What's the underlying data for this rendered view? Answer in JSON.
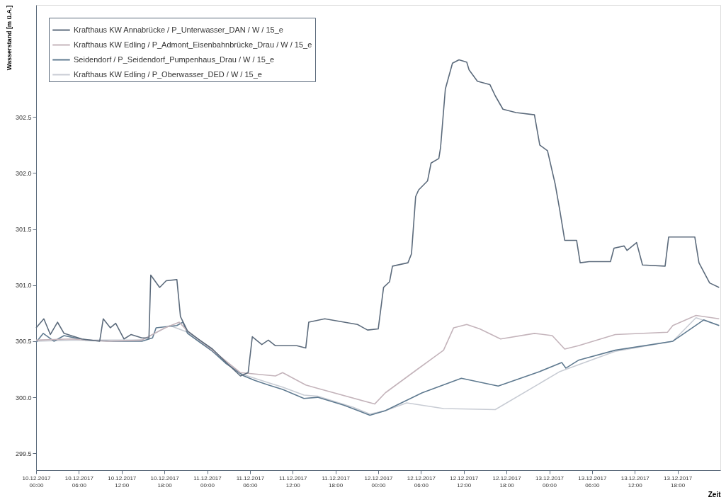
{
  "chart_data": {
    "type": "line",
    "ylabel": "Wasserstand [m ü.A.]",
    "xlabel": "Zeit",
    "xlim": [
      "2017-12-10T00:00",
      "2017-12-14T00:00"
    ],
    "ylim": [
      299.35,
      303.5
    ],
    "yticks": [
      299.5,
      {
        "value": 300,
        "label": "300.0"
      },
      300.5,
      {
        "value": 301,
        "label": "301.0"
      },
      301.5,
      {
        "value": 302,
        "label": "302.0"
      },
      302.5
    ],
    "xticks": [
      {
        "value": "2017-12-10T00:00",
        "label": "10.12.2017 00:00"
      },
      {
        "value": "2017-12-10T06:00",
        "label": "10.12.2017 06:00"
      },
      {
        "value": "2017-12-10T12:00",
        "label": "10.12.2017 12:00"
      },
      {
        "value": "2017-12-10T18:00",
        "label": "10.12.2017 18:00"
      },
      {
        "value": "2017-12-11T00:00",
        "label": "11.12.2017 00:00"
      },
      {
        "value": "2017-12-11T06:00",
        "label": "11.12.2017 06:00"
      },
      {
        "value": "2017-12-11T12:00",
        "label": "11.12.2017 12:00"
      },
      {
        "value": "2017-12-11T18:00",
        "label": "11.12.2017 18:00"
      },
      {
        "value": "2017-12-12T00:00",
        "label": "12.12.2017 00:00"
      },
      {
        "value": "2017-12-12T06:00",
        "label": "12.12.2017 06:00"
      },
      {
        "value": "2017-12-12T12:00",
        "label": "12.12.2017 12:00"
      },
      {
        "value": "2017-12-12T18:00",
        "label": "12.12.2017 18:00"
      },
      {
        "value": "2017-12-13T00:00",
        "label": "13.12.2017 00:00"
      },
      {
        "value": "2017-12-13T06:00",
        "label": "13.12.2017 06:00"
      },
      {
        "value": "2017-12-13T12:00",
        "label": "13.12.2017 12:00"
      },
      {
        "value": "2017-12-13T18:00",
        "label": "13.12.2017 18:00"
      }
    ],
    "grid": false,
    "legend": "top left",
    "series": [
      {
        "name": "Krafthaus KW Annabrücke / P_Unterwasser_DAN / W / 15_e",
        "color": "#5c6b7c",
        "x": [
          "2017-12-10T00:00",
          "2017-12-10T01:05",
          "2017-12-10T02:00",
          "2017-12-10T03:00",
          "2017-12-10T03:55",
          "2017-12-10T04:55",
          "2017-12-10T06:25",
          "2017-12-10T08:55",
          "2017-12-10T09:25",
          "2017-12-10T10:25",
          "2017-12-10T11:10",
          "2017-12-10T12:20",
          "2017-12-10T13:20",
          "2017-12-10T14:50",
          "2017-12-10T15:50",
          "2017-12-10T16:05",
          "2017-12-10T17:20",
          "2017-12-10T18:15",
          "2017-12-10T19:45",
          "2017-12-10T20:15",
          "2017-12-10T21:15",
          "2017-12-10T22:45",
          "2017-12-11T00:45",
          "2017-12-11T02:40",
          "2017-12-11T04:40",
          "2017-12-11T05:45",
          "2017-12-11T06:20",
          "2017-12-11T07:40",
          "2017-12-11T08:35",
          "2017-12-11T09:35",
          "2017-12-11T12:35",
          "2017-12-11T13:50",
          "2017-12-11T14:15",
          "2017-12-11T16:30",
          "2017-12-11T21:05",
          "2017-12-11T22:30",
          "2017-12-12T00:00",
          "2017-12-12T00:45",
          "2017-12-12T01:35",
          "2017-12-12T02:00",
          "2017-12-12T04:10",
          "2017-12-12T04:40",
          "2017-12-12T05:15",
          "2017-12-12T05:40",
          "2017-12-12T06:55",
          "2017-12-12T07:25",
          "2017-12-12T08:30",
          "2017-12-12T08:45",
          "2017-12-12T09:25",
          "2017-12-12T10:25",
          "2017-12-12T11:20",
          "2017-12-12T12:25",
          "2017-12-12T12:45",
          "2017-12-12T13:55",
          "2017-12-12T15:40",
          "2017-12-12T16:25",
          "2017-12-12T17:30",
          "2017-12-12T19:20",
          "2017-12-12T21:55",
          "2017-12-12T22:40",
          "2017-12-12T23:45",
          "2017-12-13T00:50",
          "2017-12-13T01:30",
          "2017-12-13T02:10",
          "2017-12-13T03:50",
          "2017-12-13T04:20",
          "2017-12-13T05:35",
          "2017-12-13T08:35",
          "2017-12-13T09:05",
          "2017-12-13T10:30",
          "2017-12-13T10:55",
          "2017-12-13T12:15",
          "2017-12-13T13:05",
          "2017-12-13T16:15",
          "2017-12-13T16:45",
          "2017-12-13T20:25",
          "2017-12-13T21:00",
          "2017-12-13T22:30",
          "2017-12-13T23:50"
        ],
        "values": [
          300.62,
          300.7,
          300.56,
          300.67,
          300.57,
          300.55,
          300.52,
          300.5,
          300.7,
          300.62,
          300.66,
          300.52,
          300.56,
          300.53,
          300.53,
          301.09,
          300.98,
          301.04,
          301.05,
          300.72,
          300.59,
          300.52,
          300.43,
          300.31,
          300.19,
          300.22,
          300.54,
          300.47,
          300.51,
          300.46,
          300.46,
          300.44,
          300.67,
          300.7,
          300.65,
          300.6,
          300.61,
          300.98,
          301.03,
          301.17,
          301.2,
          301.28,
          301.79,
          301.85,
          301.93,
          302.09,
          302.13,
          302.23,
          302.75,
          302.98,
          303.01,
          302.99,
          302.92,
          302.82,
          302.79,
          302.69,
          302.57,
          302.54,
          302.52,
          302.25,
          302.2,
          301.9,
          301.66,
          301.4,
          301.4,
          301.2,
          301.21,
          301.21,
          301.33,
          301.35,
          301.31,
          301.38,
          301.18,
          301.17,
          301.43,
          301.43,
          301.2,
          301.02,
          300.98
        ]
      },
      {
        "name": "Krafthaus KW Edling / P_Admont_Eisenbahnbrücke_Drau / W / 15_e",
        "color": "#c4b4bb",
        "x": [
          "2017-12-10T00:00",
          "2017-12-10T04:55",
          "2017-12-10T09:55",
          "2017-12-10T14:50",
          "2017-12-10T18:05",
          "2017-12-10T20:05",
          "2017-12-10T21:15",
          "2017-12-11T00:45",
          "2017-12-11T04:40",
          "2017-12-11T09:35",
          "2017-12-11T10:35",
          "2017-12-11T13:50",
          "2017-12-11T15:30",
          "2017-12-11T23:30",
          "2017-12-12T01:00",
          "2017-12-12T05:30",
          "2017-12-12T07:40",
          "2017-12-12T09:10",
          "2017-12-12T10:35",
          "2017-12-12T12:25",
          "2017-12-12T14:15",
          "2017-12-12T17:10",
          "2017-12-12T21:55",
          "2017-12-13T00:25",
          "2017-12-13T02:10",
          "2017-12-13T04:05",
          "2017-12-13T09:15",
          "2017-12-13T16:35",
          "2017-12-13T17:20",
          "2017-12-13T20:35",
          "2017-12-13T23:50"
        ],
        "values": [
          300.51,
          300.52,
          300.5,
          300.51,
          300.62,
          300.67,
          300.59,
          300.42,
          300.22,
          300.19,
          300.22,
          300.11,
          300.08,
          299.94,
          300.04,
          300.25,
          300.35,
          300.42,
          300.62,
          300.65,
          300.61,
          300.52,
          300.57,
          300.55,
          300.43,
          300.46,
          300.56,
          300.58,
          300.64,
          300.73,
          300.7
        ]
      },
      {
        "name": "Seidendorf / P_Seidendorf_Pumpenhaus_Drau / W / 15_e",
        "color": "#5f7a90",
        "x": [
          "2017-12-10T00:00",
          "2017-12-10T01:00",
          "2017-12-10T02:30",
          "2017-12-10T03:55",
          "2017-12-10T06:55",
          "2017-12-10T10:50",
          "2017-12-10T14:50",
          "2017-12-10T16:20",
          "2017-12-10T16:50",
          "2017-12-10T19:45",
          "2017-12-10T20:35",
          "2017-12-10T21:15",
          "2017-12-10T22:45",
          "2017-12-11T00:45",
          "2017-12-11T02:40",
          "2017-12-11T05:10",
          "2017-12-11T06:40",
          "2017-12-11T08:35",
          "2017-12-11T10:35",
          "2017-12-11T13:35",
          "2017-12-11T15:30",
          "2017-12-11T19:10",
          "2017-12-11T22:50",
          "2017-12-12T01:00",
          "2017-12-12T06:10",
          "2017-12-12T11:40",
          "2017-12-12T16:50",
          "2017-12-12T22:40",
          "2017-12-13T01:45",
          "2017-12-13T02:20",
          "2017-12-13T04:05",
          "2017-12-13T09:15",
          "2017-12-13T17:20",
          "2017-12-13T21:40",
          "2017-12-13T23:50"
        ],
        "values": [
          300.49,
          300.57,
          300.5,
          300.55,
          300.51,
          300.5,
          300.5,
          300.53,
          300.62,
          300.64,
          300.67,
          300.57,
          300.5,
          300.41,
          300.3,
          300.19,
          300.15,
          300.11,
          300.07,
          299.99,
          300.0,
          299.93,
          299.84,
          299.88,
          300.04,
          300.17,
          300.1,
          300.23,
          300.31,
          300.26,
          300.33,
          300.42,
          300.5,
          300.69,
          300.64
        ]
      },
      {
        "name": "Krafthaus KW Edling / P_Oberwasser_DED / W / 15_e",
        "color": "#c8ccd4",
        "x": [
          "2017-12-10T00:00",
          "2017-12-10T04:55",
          "2017-12-10T09:55",
          "2017-12-10T14:50",
          "2017-12-10T18:45",
          "2017-12-10T21:15",
          "2017-12-11T00:45",
          "2017-12-11T04:40",
          "2017-12-11T08:35",
          "2017-12-11T10:35",
          "2017-12-11T13:35",
          "2017-12-11T15:30",
          "2017-12-11T20:30",
          "2017-12-11T22:50",
          "2017-12-12T01:00",
          "2017-12-12T04:00",
          "2017-12-12T09:10",
          "2017-12-12T16:25",
          "2017-12-13T01:30",
          "2017-12-13T09:15",
          "2017-12-13T17:20",
          "2017-12-13T20:35",
          "2017-12-13T23:50"
        ],
        "values": [
          300.5,
          300.51,
          300.51,
          300.51,
          300.64,
          300.58,
          300.41,
          300.21,
          300.13,
          300.09,
          300.02,
          300.01,
          299.91,
          299.85,
          299.88,
          299.95,
          299.9,
          299.89,
          300.23,
          300.41,
          300.5,
          300.71,
          300.64
        ]
      }
    ]
  }
}
